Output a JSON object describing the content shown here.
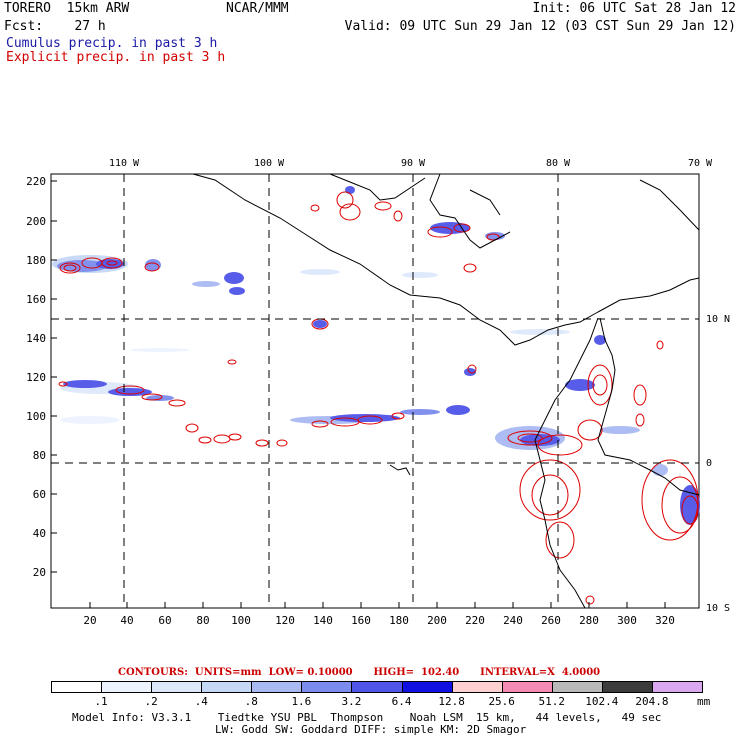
{
  "header": {
    "model": "TORERO  15km ARW",
    "center": "NCAR/MMM",
    "init": "Init: 06 UTC Sat 28 Jan 12",
    "fcst": "Fcst:    27 h",
    "valid": "Valid: 09 UTC Sun 29 Jan 12 (03 CST Sun 29 Jan 12)",
    "field1": "Cumulus precip. in past 3 h",
    "field2": "Explicit precip. in past 3 h",
    "field1_color": "#1a1aa6",
    "field2_color": "#d40000"
  },
  "map": {
    "lon_labels": [
      "110 W",
      "100 W",
      "90 W",
      "80 W",
      "70 W"
    ],
    "lat_labels": [
      "10 N",
      "0",
      "10 S"
    ],
    "y_ticks": [
      "220",
      "200",
      "180",
      "160",
      "140",
      "120",
      "100",
      "80",
      "60",
      "40",
      "20"
    ],
    "x_ticks": [
      "20",
      "40",
      "60",
      "80",
      "100",
      "120",
      "140",
      "160",
      "180",
      "200",
      "220",
      "240",
      "260",
      "280",
      "300",
      "320"
    ],
    "contour_color": "#dd0000",
    "coast_color": "#000000",
    "grid_style": "dashed"
  },
  "contours_info": {
    "label": "CONTOURS:  UNITS=mm  LOW= 0.10000      HIGH=  102.40      INTERVAL=X  4.0000",
    "color": "#cc0000"
  },
  "colorbar": {
    "colors": [
      "#ffffff",
      "#eef4ff",
      "#dde8fb",
      "#c5d8f5",
      "#a9b9f2",
      "#7c8cee",
      "#4f55e8",
      "#1010e0",
      "#ffd0d0",
      "#f58bb4",
      "#b9b9b9",
      "#3c3c3c",
      "#d9a8f0"
    ],
    "labels": [
      ".1",
      ".2",
      ".4",
      ".8",
      "1.6",
      "3.2",
      "6.4",
      "12.8",
      "25.6",
      "51.2",
      "102.4",
      "204.8"
    ],
    "unit": "mm"
  },
  "footer": {
    "line1": "Model Info: V3.3.1    Tiedtke YSU PBL  Thompson    Noah LSM  15 km,   44 levels,   49 sec",
    "line2": "LW: Godd SW: Goddard DIFF: simple KM: 2D Smagor"
  }
}
